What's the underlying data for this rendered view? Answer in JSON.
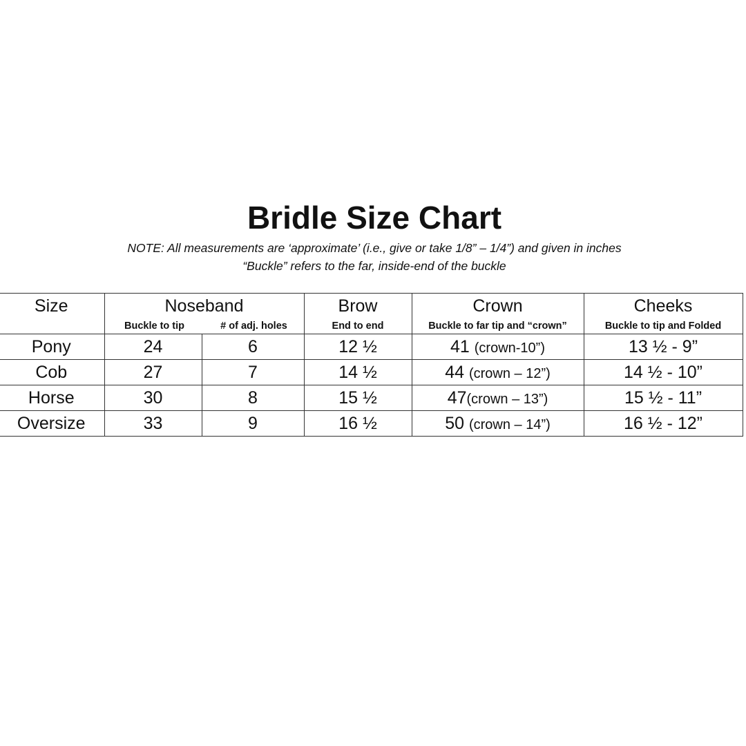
{
  "title": "Bridle Size Chart",
  "notes": [
    "NOTE:  All measurements are ‘approximate’ (i.e., give or take 1/8” – 1/4”) and given in inches",
    "“Buckle” refers to the far, inside-end of the buckle"
  ],
  "headers": {
    "size": "Size",
    "noseband": "Noseband",
    "noseband_sub1": "Buckle to tip",
    "noseband_sub2": "# of adj. holes",
    "brow": "Brow",
    "brow_sub": "End to end",
    "crown": "Crown",
    "crown_sub": "Buckle to far tip and “crown”",
    "cheeks": "Cheeks",
    "cheeks_sub": "Buckle to tip and Folded"
  },
  "rows": [
    {
      "size": "Pony",
      "buckle": "24",
      "holes": "6",
      "brow": "12 ½",
      "crown": "41 ",
      "crown_note": "(crown-10”)",
      "cheeks": "13 ½ - 9”"
    },
    {
      "size": "Cob",
      "buckle": "27",
      "holes": "7",
      "brow": "14 ½",
      "crown": "44 ",
      "crown_note": "(crown – 12”)",
      "cheeks": "14 ½ - 10”"
    },
    {
      "size": "Horse",
      "buckle": "30",
      "holes": "8",
      "brow": "15 ½",
      "crown": "47",
      "crown_note": "(crown – 13”)",
      "cheeks": "15 ½ - 11”"
    },
    {
      "size": "Oversize",
      "buckle": "33",
      "holes": "9",
      "brow": "16 ½",
      "crown": "50 ",
      "crown_note": "(crown – 14”)",
      "cheeks": "16 ½ - 12”"
    }
  ]
}
